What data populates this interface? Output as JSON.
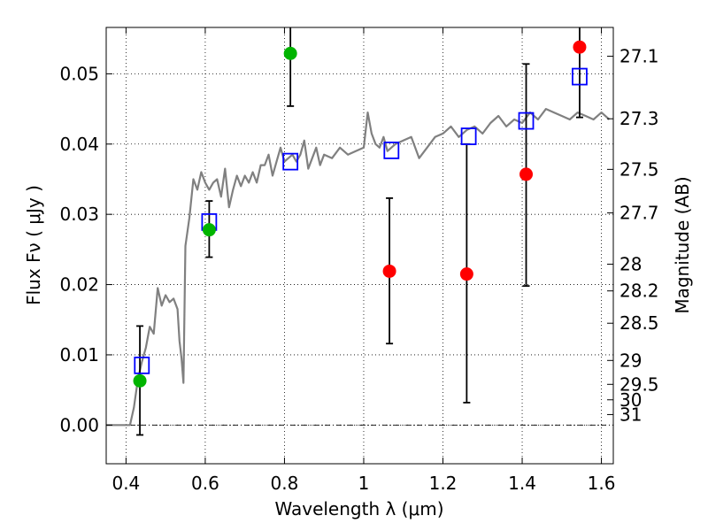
{
  "chart_data": {
    "type": "scatter",
    "xlabel": "Wavelength  λ (μm)",
    "ylabel": "Flux  Fν  ( μJy )",
    "y2label": "Magnitude (AB)",
    "xlim": [
      0.35,
      1.63
    ],
    "ylim": [
      -0.0055,
      0.0566
    ],
    "grid": true,
    "grid_style": "dotted",
    "x_ticks": [
      0.4,
      0.6,
      0.8,
      1.0,
      1.2,
      1.4,
      1.6
    ],
    "x_tick_labels": [
      "0.4",
      "0.6",
      "0.8",
      "1",
      "1.2",
      "1.4",
      "1.6"
    ],
    "y_ticks": [
      0.0,
      0.01,
      0.02,
      0.03,
      0.04,
      0.05
    ],
    "y_tick_labels": [
      "0.00",
      "0.01",
      "0.02",
      "0.03",
      "0.04",
      "0.05"
    ],
    "y2_ticks": [
      {
        "label": "27.1",
        "flux": 0.0525
      },
      {
        "label": "27.3",
        "flux": 0.0436
      },
      {
        "label": "27.5",
        "flux": 0.0364
      },
      {
        "label": "27.7",
        "flux": 0.0302
      },
      {
        "label": "28",
        "flux": 0.0229
      },
      {
        "label": "28.2",
        "flux": 0.0191
      },
      {
        "label": "28.5",
        "flux": 0.0145
      },
      {
        "label": "29",
        "flux": 0.0092
      },
      {
        "label": "29.5",
        "flux": 0.0058
      },
      {
        "label": "30",
        "flux": 0.0036
      },
      {
        "label": "31",
        "flux": 0.0015
      }
    ],
    "zero_line": {
      "y": 0.0,
      "style": "dash-dot",
      "color": "#000000"
    },
    "colors": {
      "template": "#808080",
      "green_points": "#00b400",
      "red_points": "#ff0000",
      "model_squares": "#0000ff",
      "errorbars": "#000000"
    },
    "template_spectrum": {
      "x": [
        0.35,
        0.39,
        0.41,
        0.42,
        0.43,
        0.44,
        0.45,
        0.46,
        0.47,
        0.48,
        0.49,
        0.5,
        0.51,
        0.52,
        0.53,
        0.535,
        0.54,
        0.545,
        0.55,
        0.56,
        0.57,
        0.58,
        0.59,
        0.6,
        0.61,
        0.62,
        0.63,
        0.64,
        0.65,
        0.66,
        0.67,
        0.68,
        0.69,
        0.7,
        0.71,
        0.72,
        0.73,
        0.74,
        0.75,
        0.76,
        0.77,
        0.78,
        0.79,
        0.8,
        0.81,
        0.82,
        0.83,
        0.84,
        0.85,
        0.86,
        0.87,
        0.88,
        0.89,
        0.9,
        0.92,
        0.94,
        0.96,
        0.98,
        1.0,
        1.01,
        1.02,
        1.03,
        1.04,
        1.05,
        1.06,
        1.08,
        1.1,
        1.12,
        1.14,
        1.16,
        1.18,
        1.2,
        1.22,
        1.24,
        1.26,
        1.28,
        1.3,
        1.32,
        1.34,
        1.36,
        1.38,
        1.4,
        1.42,
        1.44,
        1.46,
        1.48,
        1.5,
        1.52,
        1.54,
        1.56,
        1.58,
        1.6,
        1.62
      ],
      "y": [
        0.0,
        0.0,
        0.0,
        0.0025,
        0.0065,
        0.009,
        0.011,
        0.014,
        0.013,
        0.0195,
        0.017,
        0.0185,
        0.0175,
        0.018,
        0.0165,
        0.012,
        0.0095,
        0.006,
        0.0255,
        0.0295,
        0.035,
        0.0335,
        0.036,
        0.0345,
        0.0335,
        0.0345,
        0.035,
        0.0325,
        0.0365,
        0.031,
        0.0335,
        0.0355,
        0.034,
        0.0355,
        0.0345,
        0.036,
        0.0345,
        0.037,
        0.037,
        0.0385,
        0.0355,
        0.0375,
        0.0395,
        0.0375,
        0.038,
        0.0385,
        0.0375,
        0.0385,
        0.0405,
        0.0365,
        0.038,
        0.0395,
        0.037,
        0.0385,
        0.038,
        0.0395,
        0.0385,
        0.039,
        0.0395,
        0.0445,
        0.0415,
        0.04,
        0.0395,
        0.041,
        0.039,
        0.04,
        0.0405,
        0.041,
        0.038,
        0.0395,
        0.041,
        0.0415,
        0.0425,
        0.041,
        0.042,
        0.0425,
        0.0415,
        0.043,
        0.044,
        0.0425,
        0.0435,
        0.043,
        0.0445,
        0.0435,
        0.045,
        0.0445,
        0.044,
        0.0435,
        0.0445,
        0.044,
        0.0435,
        0.0445,
        0.0435
      ]
    },
    "green_points": {
      "x": [
        0.435,
        0.61,
        0.815
      ],
      "y": [
        0.0063,
        0.0278,
        0.0529
      ],
      "yerr_low": [
        0.0077,
        0.0039,
        0.0075
      ],
      "yerr_high": [
        0.0078,
        0.0041,
        0.01
      ]
    },
    "red_points": {
      "x": [
        1.065,
        1.26,
        1.41,
        1.545
      ],
      "y": [
        0.0219,
        0.0215,
        0.0357,
        0.0538
      ],
      "yerr_low": [
        0.0103,
        0.0183,
        0.0159,
        0.01
      ],
      "yerr_high": [
        0.0104,
        0.0185,
        0.0157,
        0.01
      ]
    },
    "model_squares": {
      "x": [
        0.44,
        0.61,
        0.815,
        1.07,
        1.265,
        1.41,
        1.545
      ],
      "y": [
        0.0085,
        0.0289,
        0.0375,
        0.0391,
        0.0411,
        0.0433,
        0.0496
      ]
    }
  }
}
